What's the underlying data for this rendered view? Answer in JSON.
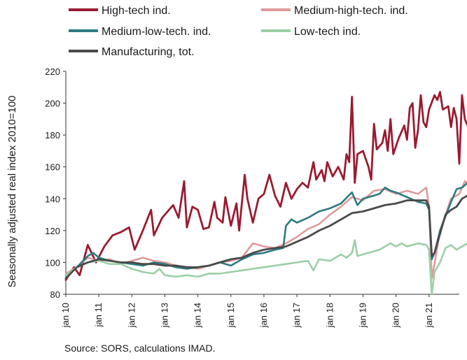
{
  "chart_data": {
    "type": "line",
    "ylabel": "Seasonally adjusted real  index 2010=100",
    "ylim": [
      80,
      220
    ],
    "yticks": [
      80,
      100,
      120,
      140,
      160,
      180,
      200,
      220
    ],
    "x_start": "2010-01",
    "x_end": "2021-12",
    "xticks": [
      "jan 10",
      "jan 11",
      "jan 12",
      "jan 13",
      "jan 14",
      "jan 15",
      "jan 16",
      "jan 17",
      "jan 18",
      "jan 19",
      "jan 20",
      "jan 21"
    ],
    "grid": false,
    "legend_placement": "top",
    "series": [
      {
        "name": "High-tech ind.",
        "color": "#9a1b30",
        "width": 2.8,
        "anchors": [
          [
            0,
            89
          ],
          [
            3,
            97
          ],
          [
            5,
            92
          ],
          [
            8,
            111
          ],
          [
            11,
            100
          ],
          [
            14,
            110
          ],
          [
            17,
            117
          ],
          [
            20,
            119
          ],
          [
            23,
            122
          ],
          [
            25,
            108
          ],
          [
            28,
            120
          ],
          [
            31,
            133
          ],
          [
            32,
            117
          ],
          [
            35,
            128
          ],
          [
            37,
            132
          ],
          [
            39,
            136
          ],
          [
            41,
            128
          ],
          [
            43,
            151
          ],
          [
            44,
            122
          ],
          [
            46,
            135
          ],
          [
            48,
            133
          ],
          [
            50,
            121
          ],
          [
            52,
            122
          ],
          [
            54,
            138
          ],
          [
            55,
            128
          ],
          [
            57,
            125
          ],
          [
            58,
            141
          ],
          [
            60,
            123
          ],
          [
            62,
            137
          ],
          [
            63,
            120
          ],
          [
            65,
            155
          ],
          [
            66,
            140
          ],
          [
            68,
            125
          ],
          [
            70,
            140
          ],
          [
            72,
            143
          ],
          [
            74,
            155
          ],
          [
            76,
            142
          ],
          [
            78,
            135
          ],
          [
            80,
            150
          ],
          [
            82,
            140
          ],
          [
            84,
            146
          ],
          [
            86,
            150
          ],
          [
            88,
            147
          ],
          [
            90,
            163
          ],
          [
            91,
            152
          ],
          [
            93,
            158
          ],
          [
            94,
            151
          ],
          [
            95,
            163
          ],
          [
            97,
            154
          ],
          [
            99,
            160
          ],
          [
            101,
            152
          ],
          [
            102,
            168
          ],
          [
            103,
            163
          ],
          [
            104,
            204
          ],
          [
            105,
            150
          ],
          [
            106,
            168
          ],
          [
            108,
            170
          ],
          [
            110,
            160
          ],
          [
            111,
            152
          ],
          [
            112,
            187
          ],
          [
            113,
            171
          ],
          [
            115,
            175
          ],
          [
            116,
            183
          ],
          [
            117,
            170
          ],
          [
            118,
            190
          ],
          [
            119,
            168
          ],
          [
            121,
            178
          ],
          [
            123,
            186
          ],
          [
            124,
            177
          ],
          [
            125,
            197
          ],
          [
            126,
            200
          ],
          [
            127,
            172
          ],
          [
            128,
            183
          ],
          [
            129,
            205
          ],
          [
            130,
            188
          ],
          [
            131,
            185
          ],
          [
            132,
            196
          ],
          [
            134,
            205
          ],
          [
            135,
            202
          ],
          [
            136,
            207
          ],
          [
            137,
            196
          ],
          [
            139,
            198
          ],
          [
            140,
            185
          ],
          [
            141,
            197
          ],
          [
            142,
            190
          ],
          [
            143,
            162
          ],
          [
            144,
            205
          ],
          [
            145,
            190
          ],
          [
            146,
            186
          ],
          [
            147,
            195
          ],
          [
            148,
            185
          ],
          [
            150,
            206
          ],
          [
            151,
            186
          ],
          [
            152,
            209
          ],
          [
            153,
            199
          ]
        ]
      },
      {
        "name": "Medium-high-tech. ind.",
        "color": "#e09a9a",
        "width": 2.6,
        "anchors": [
          [
            0,
            93
          ],
          [
            4,
            97
          ],
          [
            8,
            103
          ],
          [
            12,
            101
          ],
          [
            16,
            102
          ],
          [
            20,
            99
          ],
          [
            24,
            101
          ],
          [
            28,
            103
          ],
          [
            32,
            101
          ],
          [
            36,
            100
          ],
          [
            40,
            98
          ],
          [
            44,
            97
          ],
          [
            48,
            96
          ],
          [
            52,
            98
          ],
          [
            56,
            100
          ],
          [
            60,
            101
          ],
          [
            64,
            103
          ],
          [
            68,
            112
          ],
          [
            72,
            110
          ],
          [
            76,
            109
          ],
          [
            80,
            112
          ],
          [
            84,
            116
          ],
          [
            88,
            121
          ],
          [
            92,
            124
          ],
          [
            96,
            130
          ],
          [
            100,
            135
          ],
          [
            104,
            141
          ],
          [
            108,
            139
          ],
          [
            112,
            145
          ],
          [
            116,
            146
          ],
          [
            120,
            143
          ],
          [
            124,
            145
          ],
          [
            128,
            143
          ],
          [
            131,
            147
          ],
          [
            132,
            135
          ],
          [
            133,
            90
          ],
          [
            134,
            99
          ],
          [
            136,
            120
          ],
          [
            140,
            140
          ],
          [
            143,
            143
          ],
          [
            145,
            151
          ],
          [
            148,
            147
          ],
          [
            150,
            137
          ],
          [
            151,
            148
          ],
          [
            153,
            149
          ]
        ]
      },
      {
        "name": "Medium-low-tech. ind.",
        "color": "#2e7a82",
        "width": 2.6,
        "anchors": [
          [
            0,
            92
          ],
          [
            4,
            97
          ],
          [
            8,
            104
          ],
          [
            10,
            106
          ],
          [
            12,
            103
          ],
          [
            16,
            101
          ],
          [
            20,
            100
          ],
          [
            24,
            99
          ],
          [
            28,
            98
          ],
          [
            32,
            100
          ],
          [
            36,
            99
          ],
          [
            40,
            97
          ],
          [
            44,
            96
          ],
          [
            48,
            97
          ],
          [
            52,
            98
          ],
          [
            56,
            100
          ],
          [
            60,
            98
          ],
          [
            64,
            102
          ],
          [
            68,
            105
          ],
          [
            72,
            106
          ],
          [
            76,
            108
          ],
          [
            79,
            109
          ],
          [
            80,
            123
          ],
          [
            82,
            127
          ],
          [
            84,
            125
          ],
          [
            88,
            128
          ],
          [
            92,
            132
          ],
          [
            96,
            134
          ],
          [
            100,
            137
          ],
          [
            104,
            144
          ],
          [
            106,
            136
          ],
          [
            108,
            140
          ],
          [
            112,
            142
          ],
          [
            114,
            143
          ],
          [
            116,
            147
          ],
          [
            118,
            145
          ],
          [
            120,
            144
          ],
          [
            124,
            141
          ],
          [
            128,
            138
          ],
          [
            131,
            137
          ],
          [
            132,
            133
          ],
          [
            133,
            102
          ],
          [
            134,
            106
          ],
          [
            136,
            120
          ],
          [
            140,
            138
          ],
          [
            142,
            146
          ],
          [
            144,
            147
          ],
          [
            146,
            150
          ],
          [
            148,
            152
          ],
          [
            150,
            155
          ],
          [
            151,
            154
          ],
          [
            153,
            152
          ]
        ]
      },
      {
        "name": "Low-tech ind.",
        "color": "#9bcfa4",
        "width": 2.6,
        "anchors": [
          [
            0,
            92
          ],
          [
            4,
            97
          ],
          [
            8,
            100
          ],
          [
            12,
            101
          ],
          [
            16,
            99
          ],
          [
            20,
            99
          ],
          [
            24,
            96
          ],
          [
            28,
            94
          ],
          [
            32,
            93
          ],
          [
            34,
            96
          ],
          [
            36,
            92
          ],
          [
            40,
            91
          ],
          [
            44,
            92
          ],
          [
            48,
            91
          ],
          [
            52,
            93
          ],
          [
            56,
            93
          ],
          [
            60,
            94
          ],
          [
            64,
            95
          ],
          [
            68,
            96
          ],
          [
            72,
            97
          ],
          [
            76,
            98
          ],
          [
            80,
            99
          ],
          [
            84,
            100
          ],
          [
            88,
            101
          ],
          [
            90,
            95
          ],
          [
            92,
            102
          ],
          [
            96,
            101
          ],
          [
            100,
            105
          ],
          [
            102,
            103
          ],
          [
            104,
            106
          ],
          [
            105,
            114
          ],
          [
            106,
            104
          ],
          [
            110,
            106
          ],
          [
            114,
            108
          ],
          [
            118,
            112
          ],
          [
            120,
            110
          ],
          [
            122,
            112
          ],
          [
            124,
            110
          ],
          [
            128,
            112
          ],
          [
            131,
            111
          ],
          [
            132,
            108
          ],
          [
            133,
            80
          ],
          [
            134,
            94
          ],
          [
            136,
            100
          ],
          [
            138,
            109
          ],
          [
            140,
            111
          ],
          [
            142,
            108
          ],
          [
            144,
            110
          ],
          [
            146,
            112
          ],
          [
            148,
            115
          ],
          [
            150,
            118
          ],
          [
            153,
            121
          ]
        ]
      },
      {
        "name": "Manufacturing, tot.",
        "color": "#4a4a4a",
        "width": 2.8,
        "anchors": [
          [
            0,
            90
          ],
          [
            4,
            97
          ],
          [
            8,
            100
          ],
          [
            12,
            102
          ],
          [
            16,
            101
          ],
          [
            20,
            100
          ],
          [
            24,
            100
          ],
          [
            28,
            99
          ],
          [
            32,
            99
          ],
          [
            36,
            98
          ],
          [
            40,
            98
          ],
          [
            44,
            97
          ],
          [
            48,
            97
          ],
          [
            52,
            98
          ],
          [
            56,
            100
          ],
          [
            60,
            102
          ],
          [
            64,
            103
          ],
          [
            68,
            106
          ],
          [
            72,
            108
          ],
          [
            76,
            109
          ],
          [
            80,
            110
          ],
          [
            84,
            113
          ],
          [
            88,
            116
          ],
          [
            92,
            120
          ],
          [
            96,
            123
          ],
          [
            100,
            127
          ],
          [
            104,
            131
          ],
          [
            108,
            132
          ],
          [
            112,
            134
          ],
          [
            116,
            136
          ],
          [
            120,
            137
          ],
          [
            124,
            139
          ],
          [
            128,
            139
          ],
          [
            131,
            139
          ],
          [
            132,
            135
          ],
          [
            133,
            104
          ],
          [
            134,
            106
          ],
          [
            136,
            118
          ],
          [
            138,
            130
          ],
          [
            140,
            133
          ],
          [
            142,
            135
          ],
          [
            144,
            140
          ],
          [
            146,
            142
          ],
          [
            148,
            143
          ],
          [
            150,
            146
          ],
          [
            153,
            148
          ]
        ]
      }
    ]
  },
  "source_text": "Source: SORS, calculations IMAD."
}
